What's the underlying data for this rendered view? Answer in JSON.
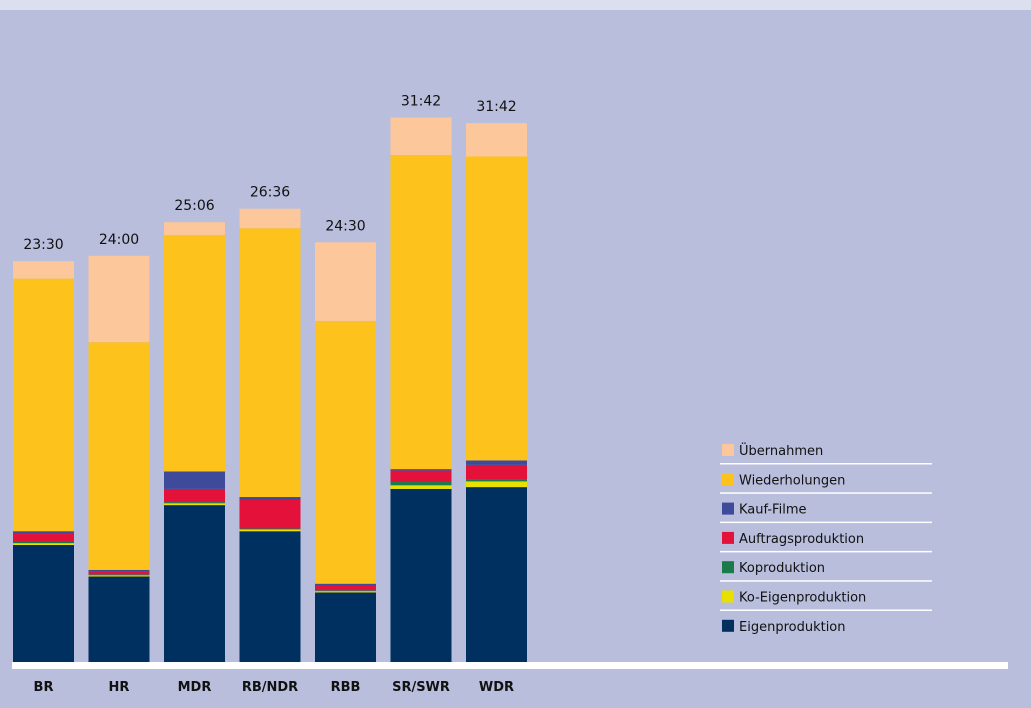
{
  "chart_data": {
    "type": "bar",
    "stacked": true,
    "title": "",
    "xlabel": "",
    "ylabel": "",
    "ylim": [
      0,
      2000
    ],
    "categories": [
      "BR",
      "HR",
      "MDR",
      "RB/NDR",
      "RBB",
      "SR/SWR",
      "WDR"
    ],
    "totals": [
      "23:30",
      "24:00",
      "25:06",
      "26:36",
      "24:30",
      "31:42",
      "31:42"
    ],
    "series": [
      {
        "name": "Eigenproduktion",
        "color": "#00305f",
        "values": [
          390,
          285,
          523,
          436,
          232,
          577,
          583
        ]
      },
      {
        "name": "Ko-Eigenproduktion",
        "color": "#e8e000",
        "values": [
          6,
          4,
          6,
          6,
          4,
          12,
          19
        ]
      },
      {
        "name": "Koproduktion",
        "color": "#1a7a4a",
        "values": [
          4,
          3,
          4,
          3,
          3,
          11,
          6
        ]
      },
      {
        "name": "Auftragsproduktion",
        "color": "#e4123a",
        "values": [
          30,
          10,
          44,
          95,
          16,
          38,
          49
        ]
      },
      {
        "name": "Kauf-Filme",
        "color": "#3e4a9a",
        "values": [
          6,
          5,
          58,
          10,
          6,
          5,
          15
        ]
      },
      {
        "name": "Wiederholungen",
        "color": "#fdc21b",
        "values": [
          842,
          759,
          788,
          896,
          876,
          1047,
          1013
        ]
      },
      {
        "name": "Übernahmen",
        "color": "#fcc79a",
        "values": [
          58,
          288,
          43,
          65,
          262,
          125,
          111
        ]
      }
    ],
    "legend_position": "right",
    "legend_order": [
      "Übernahmen",
      "Wiederholungen",
      "Kauf-Filme",
      "Auftragsproduktion",
      "Koproduktion",
      "Ko-Eigenproduktion",
      "Eigenproduktion"
    ],
    "grid": false
  }
}
